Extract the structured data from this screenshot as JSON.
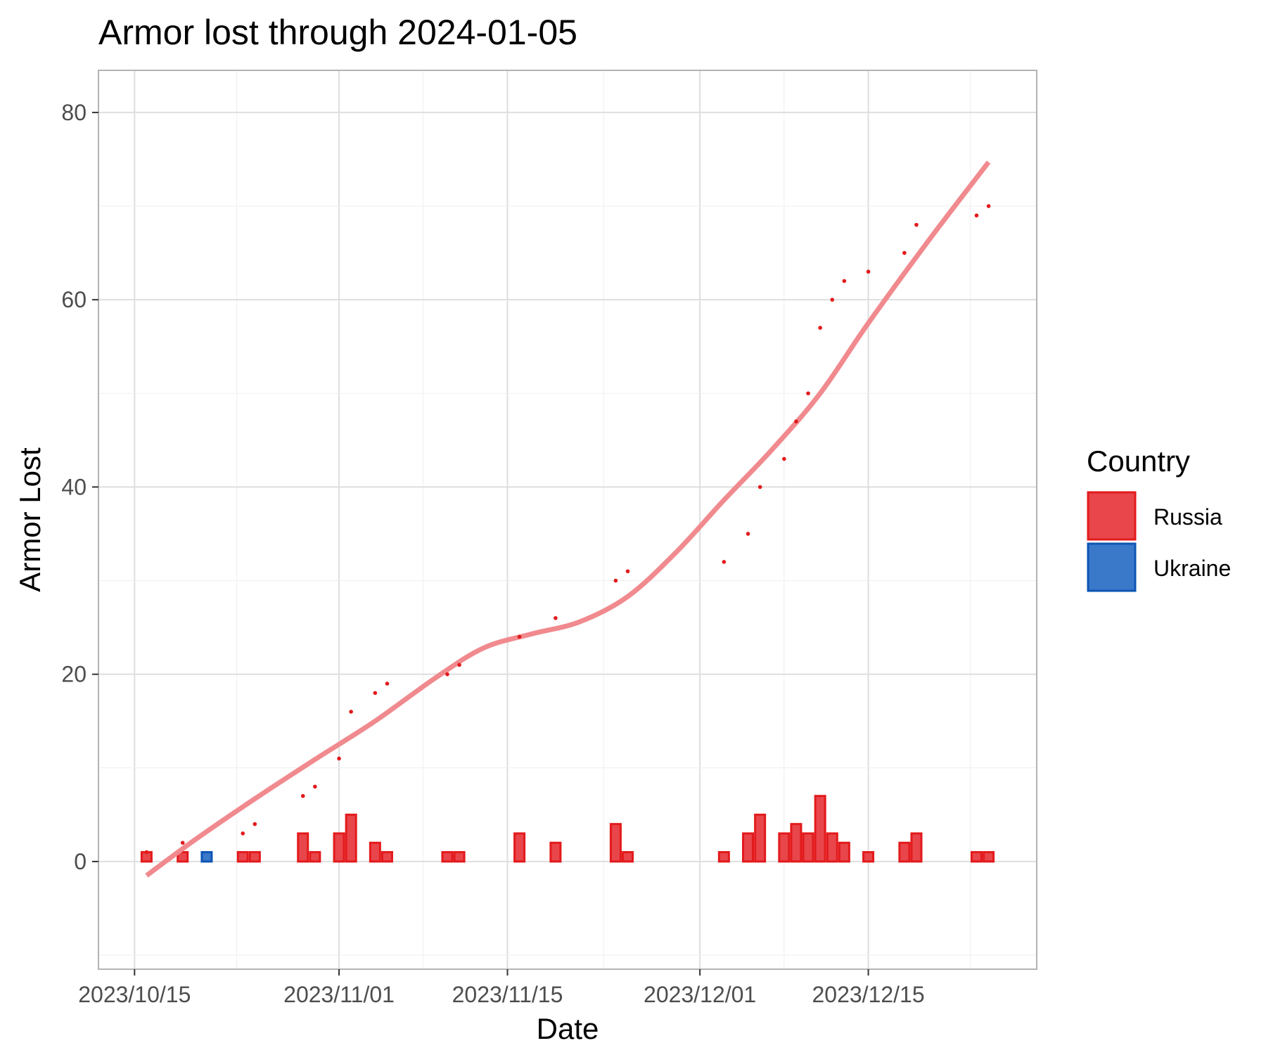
{
  "chart_data": {
    "type": "bar",
    "title": "Armor lost through 2024-01-05",
    "xlabel": "Date",
    "ylabel": "Armor Lost",
    "x_ticks": [
      "2023/10/15",
      "2023/11/01",
      "2023/11/15",
      "2023/12/01",
      "2023/12/15"
    ],
    "y_ticks": [
      0,
      20,
      40,
      60,
      80
    ],
    "xlim": [
      "2023-10-12",
      "2023-12-29"
    ],
    "ylim": [
      -11.5,
      84.5
    ],
    "grid": true,
    "legend": {
      "title": "Country",
      "position": "right",
      "entries": [
        {
          "name": "Russia",
          "fill": "#e8464b",
          "stroke": "#e31a1c"
        },
        {
          "name": "Ukraine",
          "fill": "#3a78c9",
          "stroke": "#0e55b5"
        }
      ]
    },
    "series": [
      {
        "name": "Russia",
        "kind": "daily_bars",
        "color": "#e31a1c",
        "points": [
          {
            "date": "2023-10-16",
            "value": 1
          },
          {
            "date": "2023-10-19",
            "value": 1
          },
          {
            "date": "2023-10-24",
            "value": 1
          },
          {
            "date": "2023-10-25",
            "value": 1
          },
          {
            "date": "2023-10-29",
            "value": 3
          },
          {
            "date": "2023-10-30",
            "value": 1
          },
          {
            "date": "2023-11-01",
            "value": 3
          },
          {
            "date": "2023-11-02",
            "value": 5
          },
          {
            "date": "2023-11-04",
            "value": 2
          },
          {
            "date": "2023-11-05",
            "value": 1
          },
          {
            "date": "2023-11-10",
            "value": 1
          },
          {
            "date": "2023-11-11",
            "value": 1
          },
          {
            "date": "2023-11-16",
            "value": 3
          },
          {
            "date": "2023-11-19",
            "value": 2
          },
          {
            "date": "2023-11-24",
            "value": 4
          },
          {
            "date": "2023-11-25",
            "value": 1
          },
          {
            "date": "2023-12-03",
            "value": 1
          },
          {
            "date": "2023-12-05",
            "value": 3
          },
          {
            "date": "2023-12-06",
            "value": 5
          },
          {
            "date": "2023-12-08",
            "value": 3
          },
          {
            "date": "2023-12-09",
            "value": 4
          },
          {
            "date": "2023-12-10",
            "value": 3
          },
          {
            "date": "2023-12-11",
            "value": 7
          },
          {
            "date": "2023-12-12",
            "value": 3
          },
          {
            "date": "2023-12-13",
            "value": 2
          },
          {
            "date": "2023-12-15",
            "value": 1
          },
          {
            "date": "2023-12-18",
            "value": 2
          },
          {
            "date": "2023-12-19",
            "value": 3
          },
          {
            "date": "2023-12-24",
            "value": 1
          },
          {
            "date": "2023-12-25",
            "value": 1
          }
        ]
      },
      {
        "name": "Ukraine",
        "kind": "daily_bars",
        "color": "#0e55b5",
        "points": [
          {
            "date": "2023-10-21",
            "value": 1
          }
        ]
      },
      {
        "name": "Russia",
        "kind": "cumulative_points",
        "color": "#e31a1c",
        "points": [
          {
            "date": "2023-10-16",
            "value": 1
          },
          {
            "date": "2023-10-19",
            "value": 2
          },
          {
            "date": "2023-10-24",
            "value": 3
          },
          {
            "date": "2023-10-25",
            "value": 4
          },
          {
            "date": "2023-10-29",
            "value": 7
          },
          {
            "date": "2023-10-30",
            "value": 8
          },
          {
            "date": "2023-11-01",
            "value": 11
          },
          {
            "date": "2023-11-02",
            "value": 16
          },
          {
            "date": "2023-11-04",
            "value": 18
          },
          {
            "date": "2023-11-05",
            "value": 19
          },
          {
            "date": "2023-11-10",
            "value": 20
          },
          {
            "date": "2023-11-11",
            "value": 21
          },
          {
            "date": "2023-11-16",
            "value": 24
          },
          {
            "date": "2023-11-19",
            "value": 26
          },
          {
            "date": "2023-11-24",
            "value": 30
          },
          {
            "date": "2023-11-25",
            "value": 31
          },
          {
            "date": "2023-12-03",
            "value": 32
          },
          {
            "date": "2023-12-05",
            "value": 35
          },
          {
            "date": "2023-12-06",
            "value": 40
          },
          {
            "date": "2023-12-08",
            "value": 43
          },
          {
            "date": "2023-12-09",
            "value": 47
          },
          {
            "date": "2023-12-10",
            "value": 50
          },
          {
            "date": "2023-12-11",
            "value": 57
          },
          {
            "date": "2023-12-12",
            "value": 60
          },
          {
            "date": "2023-12-13",
            "value": 62
          },
          {
            "date": "2023-12-15",
            "value": 63
          },
          {
            "date": "2023-12-18",
            "value": 65
          },
          {
            "date": "2023-12-19",
            "value": 68
          },
          {
            "date": "2023-12-24",
            "value": 69
          },
          {
            "date": "2023-12-25",
            "value": 70
          }
        ]
      },
      {
        "name": "Russia",
        "kind": "smooth_trend",
        "color": "#f08a8e",
        "points": [
          {
            "date": "2023-10-16",
            "value": -1.5
          },
          {
            "date": "2023-10-20",
            "value": 2.3
          },
          {
            "date": "2023-10-25",
            "value": 6.7
          },
          {
            "date": "2023-10-30",
            "value": 10.9
          },
          {
            "date": "2023-11-04",
            "value": 15.0
          },
          {
            "date": "2023-11-09",
            "value": 19.6
          },
          {
            "date": "2023-11-13",
            "value": 22.8
          },
          {
            "date": "2023-11-17",
            "value": 24.3
          },
          {
            "date": "2023-11-21",
            "value": 25.6
          },
          {
            "date": "2023-11-25",
            "value": 28.3
          },
          {
            "date": "2023-11-29",
            "value": 33.0
          },
          {
            "date": "2023-12-03",
            "value": 38.6
          },
          {
            "date": "2023-12-07",
            "value": 44.0
          },
          {
            "date": "2023-12-11",
            "value": 50.0
          },
          {
            "date": "2023-12-15",
            "value": 57.5
          },
          {
            "date": "2023-12-20",
            "value": 66.3
          },
          {
            "date": "2023-12-25",
            "value": 74.7
          }
        ]
      }
    ]
  }
}
